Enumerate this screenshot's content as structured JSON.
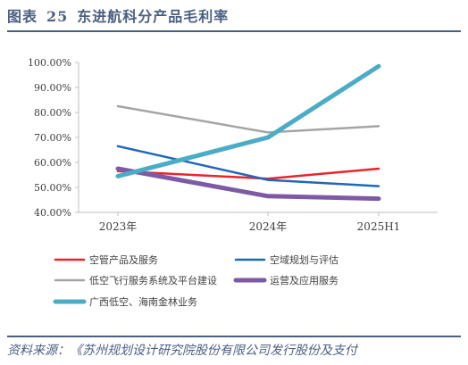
{
  "figure": {
    "label": "图表",
    "number": "25",
    "title": "东进航科分产品毛利率"
  },
  "source": "资料来源：《苏州规划设计研究院股份有限公司发行股份及支付",
  "chart_data": {
    "type": "line",
    "categories": [
      "2023年",
      "2024年",
      "2025H1"
    ],
    "ylim": [
      0.4,
      1.0
    ],
    "yticks": [
      "40.00%",
      "50.00%",
      "60.00%",
      "70.00%",
      "80.00%",
      "90.00%",
      "100.00%"
    ],
    "legend_position": "bottom",
    "grid": false,
    "series": [
      {
        "name": "空管产品及服务",
        "color": "#e8242c",
        "width": 2.5,
        "values": [
          0.565,
          0.535,
          0.575
        ]
      },
      {
        "name": "空域规划与评估",
        "color": "#1f68b8",
        "width": 2.5,
        "values": [
          0.665,
          0.53,
          0.505
        ]
      },
      {
        "name": "低空飞行服务系统及平台建设",
        "color": "#a5a5a5",
        "width": 2.5,
        "values": [
          0.825,
          0.72,
          0.745
        ]
      },
      {
        "name": "运营及应用服务",
        "color": "#7e5aa6",
        "width": 5,
        "values": [
          0.575,
          0.465,
          0.455
        ]
      },
      {
        "name": "广西低空、海南金林业务",
        "color": "#4bacc6",
        "width": 5,
        "values": [
          0.545,
          0.7,
          0.985
        ]
      }
    ]
  }
}
